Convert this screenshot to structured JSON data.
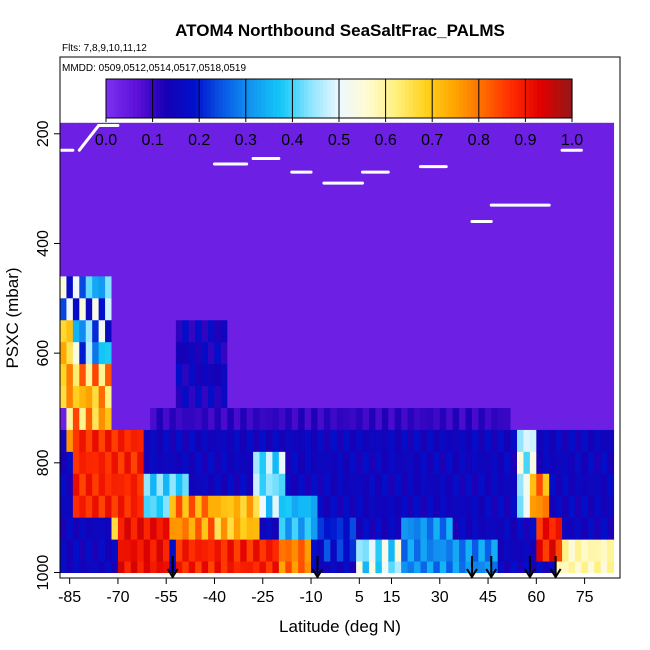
{
  "chart_data": {
    "type": "heatmap",
    "title": "ATOM4 Northbound SeaSaltFrac_PALMS",
    "flights_note": "Flts: 7,8,9,10,11,12",
    "dates_note": "MMDD: 0509,0512,0514,0517,0518,0519",
    "xlabel": "Latitude (deg N)",
    "ylabel": "PSXC (mbar)",
    "xlim": [
      -88,
      86
    ],
    "ylim": [
      1010,
      60
    ],
    "y_reversed": true,
    "x_ticks": [
      "-85",
      "-70",
      "-55",
      "-40",
      "-25",
      "-10",
      "5",
      "15",
      "30",
      "45",
      "60",
      "75"
    ],
    "y_ticks": [
      "200",
      "400",
      "600",
      "800",
      "1000"
    ],
    "colorbar": {
      "range": [
        0.0,
        1.0
      ],
      "tick_labels": [
        "0.0",
        "0.1",
        "0.2",
        "0.3",
        "0.4",
        "0.5",
        "0.6",
        "0.7",
        "0.8",
        "0.9",
        "1.0"
      ],
      "colors": [
        "#7a2ff0",
        "#5e10d8",
        "#1800b4",
        "#0010cc",
        "#0a5ae6",
        "#1298f2",
        "#14c8f8",
        "#8ae4ff",
        "#eef8ff",
        "#fffbd2",
        "#fff07a",
        "#ffd21e",
        "#ffa500",
        "#ff6a00",
        "#ff2a00",
        "#e00000",
        "#9a1616"
      ]
    },
    "pressure_levels": [
      180,
      220,
      260,
      300,
      340,
      380,
      420,
      460,
      500,
      540,
      580,
      620,
      660,
      700,
      740,
      780,
      820,
      860,
      900,
      940,
      980,
      1000
    ],
    "cell_lat_width": 2,
    "default_value": 0.03,
    "fill_lat_range": [
      -88,
      84
    ],
    "boundary_layer_top": 470,
    "patches": [
      {
        "lat": [
          -88,
          -72
        ],
        "p": [
          470,
          620
        ],
        "v": [
          0.15,
          0.55
        ]
      },
      {
        "lat": [
          -88,
          -84
        ],
        "p": [
          540,
          680
        ],
        "v": [
          0.65,
          0.75
        ]
      },
      {
        "lat": [
          -86,
          -72
        ],
        "p": [
          640,
          760
        ],
        "v": [
          0.6,
          0.85
        ]
      },
      {
        "lat": [
          -84,
          -62
        ],
        "p": [
          760,
          900
        ],
        "v": [
          0.85,
          0.92
        ]
      },
      {
        "lat": [
          -72,
          -62
        ],
        "p": [
          860,
          920
        ],
        "v": [
          0.5,
          0.7
        ]
      },
      {
        "lat": [
          -70,
          -54
        ],
        "p": [
          900,
          1000
        ],
        "v": [
          0.88,
          0.95
        ]
      },
      {
        "lat": [
          -62,
          -48
        ],
        "p": [
          840,
          900
        ],
        "v": [
          0.35,
          0.45
        ]
      },
      {
        "lat": [
          -54,
          -40
        ],
        "p": [
          880,
          940
        ],
        "v": [
          0.7,
          0.85
        ]
      },
      {
        "lat": [
          -44,
          -26
        ],
        "p": [
          880,
          940
        ],
        "v": [
          0.65,
          0.78
        ]
      },
      {
        "lat": [
          -52,
          -20
        ],
        "p": [
          940,
          1000
        ],
        "v": [
          0.85,
          0.93
        ]
      },
      {
        "lat": [
          -20,
          -10
        ],
        "p": [
          940,
          1000
        ],
        "v": [
          0.75,
          0.85
        ]
      },
      {
        "lat": [
          -28,
          -18
        ],
        "p": [
          780,
          880
        ],
        "v": [
          0.35,
          0.5
        ]
      },
      {
        "lat": [
          -20,
          -8
        ],
        "p": [
          880,
          940
        ],
        "v": [
          0.3,
          0.4
        ]
      },
      {
        "lat": [
          -8,
          4
        ],
        "p": [
          900,
          960
        ],
        "v": [
          0.15,
          0.25
        ]
      },
      {
        "lat": [
          4,
          18
        ],
        "p": [
          940,
          1000
        ],
        "v": [
          0.35,
          0.55
        ]
      },
      {
        "lat": [
          18,
          34
        ],
        "p": [
          920,
          1000
        ],
        "v": [
          0.25,
          0.35
        ]
      },
      {
        "lat": [
          34,
          48
        ],
        "p": [
          940,
          1000
        ],
        "v": [
          0.25,
          0.35
        ]
      },
      {
        "lat": [
          54,
          60
        ],
        "p": [
          740,
          900
        ],
        "v": [
          0.4,
          0.55
        ]
      },
      {
        "lat": [
          58,
          64
        ],
        "p": [
          820,
          880
        ],
        "v": [
          0.7,
          0.85
        ]
      },
      {
        "lat": [
          60,
          68
        ],
        "p": [
          900,
          960
        ],
        "v": [
          0.85,
          0.95
        ]
      },
      {
        "lat": [
          66,
          84
        ],
        "p": [
          940,
          1000
        ],
        "v": [
          0.55,
          0.62
        ]
      },
      {
        "lat": [
          -52,
          -36
        ],
        "p": [
          560,
          700
        ],
        "v": [
          0.1,
          0.18
        ]
      },
      {
        "lat": [
          -88,
          84
        ],
        "p": [
          760,
          1000
        ],
        "v": [
          0.12,
          0.18
        ]
      },
      {
        "lat": [
          -60,
          52
        ],
        "p": [
          700,
          780
        ],
        "v": [
          0.08,
          0.12
        ]
      }
    ],
    "arrow_latitudes": [
      -53,
      -8,
      40,
      46,
      58,
      66
    ],
    "flight_tracks": [
      {
        "lat": [
          -88,
          -84
        ],
        "p": [
          230,
          230
        ]
      },
      {
        "lat": [
          -82,
          -76
        ],
        "p": [
          230,
          185
        ]
      },
      {
        "lat": [
          -76,
          -70
        ],
        "p": [
          185,
          185
        ]
      },
      {
        "lat": [
          -40,
          -30
        ],
        "p": [
          255,
          255
        ]
      },
      {
        "lat": [
          -28,
          -20
        ],
        "p": [
          245,
          245
        ]
      },
      {
        "lat": [
          -16,
          -10
        ],
        "p": [
          270,
          270
        ]
      },
      {
        "lat": [
          -6,
          6
        ],
        "p": [
          290,
          290
        ]
      },
      {
        "lat": [
          6,
          14
        ],
        "p": [
          270,
          270
        ]
      },
      {
        "lat": [
          24,
          32
        ],
        "p": [
          260,
          260
        ]
      },
      {
        "lat": [
          40,
          46
        ],
        "p": [
          360,
          360
        ]
      },
      {
        "lat": [
          46,
          64
        ],
        "p": [
          330,
          330
        ]
      },
      {
        "lat": [
          68,
          74
        ],
        "p": [
          230,
          230
        ]
      }
    ]
  }
}
